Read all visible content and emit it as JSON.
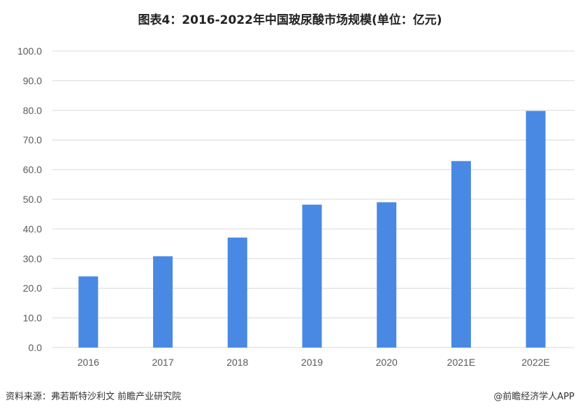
{
  "chart_data": {
    "type": "bar",
    "title": "图表4：2016-2022年中国玻尿酸市场规模(单位：亿元)",
    "categories": [
      "2016",
      "2017",
      "2018",
      "2019",
      "2020",
      "2021E",
      "2022E"
    ],
    "values": [
      24.0,
      30.8,
      37.1,
      48.2,
      49.0,
      62.9,
      79.8
    ],
    "ylim": [
      0,
      100
    ],
    "yticks": [
      "0.0",
      "10.0",
      "20.0",
      "30.0",
      "40.0",
      "50.0",
      "60.0",
      "70.0",
      "80.0",
      "90.0",
      "100.0"
    ],
    "grid": true,
    "bar_color": "#4A89E3",
    "grid_color": "#D9D9D9"
  },
  "footer": {
    "source": "资料来源：弗若斯特沙利文 前瞻产业研究院",
    "credit": "@前瞻经济学人APP"
  }
}
